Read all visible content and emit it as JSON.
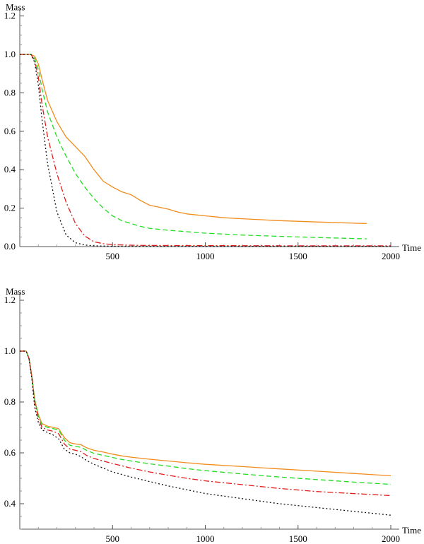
{
  "chart_data": [
    {
      "type": "line",
      "xlabel": "Time",
      "ylabel": "Mass",
      "xlim": [
        0,
        2000
      ],
      "ylim": [
        0,
        1.2
      ],
      "xticks": [
        500,
        1000,
        1500,
        2000
      ],
      "yticks": [
        0.0,
        0.2,
        0.4,
        0.6,
        0.8,
        1.0,
        1.2
      ],
      "xtick_labels": [
        "500",
        "1000",
        "1500",
        "2000"
      ],
      "ytick_labels": [
        "0.0",
        "0.2",
        "0.4",
        "0.6",
        "0.8",
        "1.0",
        "1.2"
      ],
      "series": [
        {
          "style": "solid",
          "color": "#f28c1c",
          "x": [
            0,
            60,
            80,
            100,
            120,
            150,
            200,
            250,
            300,
            350,
            400,
            450,
            500,
            550,
            600,
            650,
            700,
            750,
            800,
            850,
            900,
            1000,
            1100,
            1200,
            1400,
            1600,
            1870
          ],
          "y": [
            1.0,
            1.0,
            0.99,
            0.95,
            0.87,
            0.76,
            0.65,
            0.57,
            0.52,
            0.47,
            0.4,
            0.34,
            0.31,
            0.285,
            0.27,
            0.24,
            0.215,
            0.205,
            0.195,
            0.18,
            0.17,
            0.16,
            0.15,
            0.145,
            0.135,
            0.128,
            0.12
          ]
        },
        {
          "style": "dashed",
          "color": "#22dd22",
          "x": [
            0,
            60,
            80,
            100,
            120,
            150,
            200,
            250,
            300,
            350,
            400,
            450,
            500,
            550,
            600,
            650,
            700,
            800,
            1000,
            1200,
            1500,
            1870
          ],
          "y": [
            1.0,
            1.0,
            0.98,
            0.92,
            0.82,
            0.7,
            0.57,
            0.47,
            0.38,
            0.31,
            0.25,
            0.2,
            0.16,
            0.135,
            0.12,
            0.105,
            0.095,
            0.085,
            0.07,
            0.06,
            0.05,
            0.04
          ]
        },
        {
          "style": "dashdot",
          "color": "#e21b1b",
          "x": [
            0,
            60,
            80,
            100,
            120,
            150,
            200,
            250,
            300,
            350,
            400,
            450,
            500,
            600,
            700,
            1000,
            1500,
            2000
          ],
          "y": [
            1.0,
            1.0,
            0.97,
            0.88,
            0.74,
            0.57,
            0.38,
            0.23,
            0.12,
            0.055,
            0.025,
            0.015,
            0.01,
            0.007,
            0.006,
            0.005,
            0.004,
            0.004
          ]
        },
        {
          "style": "dotted",
          "color": "#111111",
          "x": [
            0,
            60,
            80,
            100,
            120,
            150,
            200,
            250,
            300,
            350,
            400,
            500,
            1000,
            2000
          ],
          "y": [
            1.0,
            1.0,
            0.96,
            0.84,
            0.66,
            0.43,
            0.18,
            0.06,
            0.02,
            0.008,
            0.004,
            0.002,
            0.001,
            0.001
          ]
        }
      ]
    },
    {
      "type": "line",
      "xlabel": "Time",
      "ylabel": "Mass",
      "xlim": [
        0,
        2000
      ],
      "ylim": [
        0.3,
        1.2
      ],
      "xticks": [
        500,
        1000,
        1500,
        2000
      ],
      "yticks": [
        0.4,
        0.6,
        0.8,
        1.0,
        1.2
      ],
      "xtick_labels": [
        "500",
        "1000",
        "1500",
        "2000"
      ],
      "ytick_labels": [
        "0.4",
        "0.6",
        "0.8",
        "1.0",
        "1.2"
      ],
      "series": [
        {
          "style": "solid",
          "color": "#f28c1c",
          "x": [
            0,
            35,
            50,
            65,
            80,
            100,
            120,
            150,
            180,
            210,
            240,
            270,
            300,
            330,
            360,
            400,
            450,
            500,
            550,
            600,
            700,
            800,
            900,
            1000,
            1200,
            1400,
            1600,
            1800,
            2000
          ],
          "y": [
            1.0,
            1.0,
            0.97,
            0.9,
            0.81,
            0.75,
            0.715,
            0.705,
            0.7,
            0.695,
            0.66,
            0.64,
            0.635,
            0.632,
            0.62,
            0.61,
            0.603,
            0.595,
            0.588,
            0.583,
            0.575,
            0.568,
            0.561,
            0.555,
            0.546,
            0.537,
            0.528,
            0.519,
            0.51
          ]
        },
        {
          "style": "dashed",
          "color": "#22dd22",
          "x": [
            0,
            35,
            50,
            65,
            80,
            100,
            120,
            150,
            180,
            210,
            240,
            270,
            300,
            330,
            360,
            400,
            450,
            500,
            550,
            600,
            700,
            800,
            900,
            1000,
            1200,
            1400,
            1600,
            1800,
            2000
          ],
          "y": [
            1.0,
            1.0,
            0.97,
            0.9,
            0.81,
            0.745,
            0.71,
            0.7,
            0.695,
            0.69,
            0.65,
            0.63,
            0.625,
            0.622,
            0.61,
            0.598,
            0.59,
            0.582,
            0.574,
            0.568,
            0.557,
            0.548,
            0.538,
            0.53,
            0.517,
            0.505,
            0.495,
            0.485,
            0.476
          ]
        },
        {
          "style": "dashdot",
          "color": "#e21b1b",
          "x": [
            0,
            35,
            50,
            65,
            80,
            100,
            120,
            150,
            180,
            210,
            240,
            270,
            300,
            330,
            360,
            400,
            450,
            500,
            600,
            700,
            800,
            900,
            1000,
            1200,
            1400,
            1600,
            1800,
            2000
          ],
          "y": [
            1.0,
            1.0,
            0.97,
            0.9,
            0.8,
            0.735,
            0.7,
            0.69,
            0.685,
            0.675,
            0.635,
            0.615,
            0.61,
            0.605,
            0.59,
            0.578,
            0.568,
            0.558,
            0.54,
            0.525,
            0.512,
            0.5,
            0.49,
            0.475,
            0.46,
            0.448,
            0.44,
            0.432
          ]
        },
        {
          "style": "dotted",
          "color": "#111111",
          "x": [
            0,
            35,
            50,
            65,
            80,
            100,
            120,
            150,
            180,
            210,
            240,
            270,
            300,
            330,
            360,
            400,
            450,
            500,
            600,
            700,
            800,
            900,
            1000,
            1200,
            1400,
            1600,
            1800,
            2000
          ],
          "y": [
            1.0,
            1.0,
            0.97,
            0.89,
            0.78,
            0.72,
            0.69,
            0.68,
            0.67,
            0.655,
            0.615,
            0.6,
            0.595,
            0.585,
            0.57,
            0.555,
            0.54,
            0.525,
            0.505,
            0.487,
            0.47,
            0.455,
            0.44,
            0.42,
            0.4,
            0.385,
            0.37,
            0.355
          ]
        }
      ]
    }
  ]
}
